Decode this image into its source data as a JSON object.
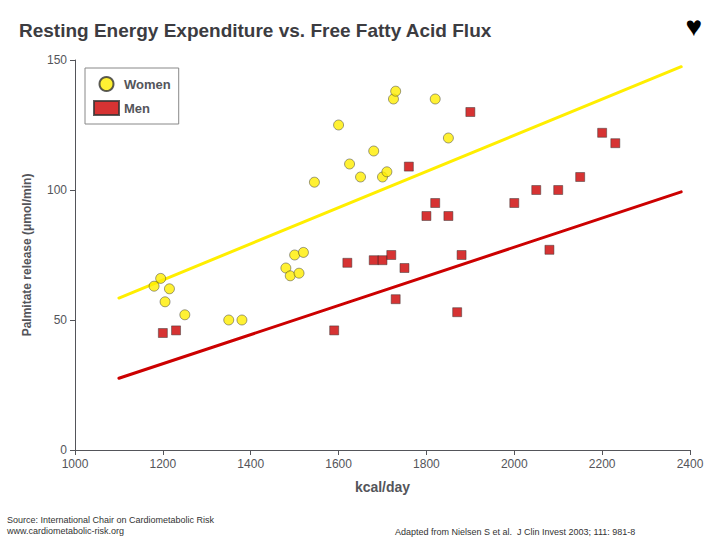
{
  "chart_data": {
    "type": "scatter",
    "title": "Resting Energy Expenditure vs. Free Fatty Acid Flux",
    "x_label": "kcal/day",
    "y_label": "Palmitate release (μmol/min)",
    "xlim": [
      1000,
      2400
    ],
    "ylim": [
      0,
      150
    ],
    "xticks": [
      1000,
      1200,
      1400,
      1600,
      1800,
      2000,
      2200,
      2400
    ],
    "yticks": [
      0,
      50,
      100,
      150
    ],
    "grid": false,
    "legend": "upper left",
    "series": [
      {
        "name": "Women",
        "type": "scatter",
        "marker": "circle",
        "color": "#ffee00",
        "x": [
          1180,
          1195,
          1205,
          1215,
          1250,
          1350,
          1380,
          1480,
          1490,
          1500,
          1510,
          1520,
          1545,
          1600,
          1625,
          1650,
          1680,
          1700,
          1710,
          1725,
          1730,
          1820,
          1850
        ],
        "values": [
          63,
          66,
          57,
          62,
          52,
          50,
          50,
          70,
          67,
          75,
          68,
          76,
          103,
          125,
          110,
          105,
          115,
          105,
          107,
          135,
          138,
          135,
          120
        ]
      },
      {
        "name": "Men",
        "type": "scatter",
        "marker": "square",
        "color": "#cc0000",
        "x": [
          1200,
          1230,
          1590,
          1620,
          1680,
          1700,
          1720,
          1730,
          1750,
          1760,
          1800,
          1820,
          1850,
          1870,
          1880,
          1900,
          2000,
          2050,
          2080,
          2100,
          2150,
          2200,
          2230
        ],
        "values": [
          45,
          46,
          46,
          72,
          73,
          73,
          75,
          58,
          70,
          109,
          90,
          95,
          90,
          53,
          75,
          130,
          95,
          100,
          77,
          100,
          105,
          122,
          118
        ]
      },
      {
        "type": "line",
        "color": "#ffee00",
        "x": [
          1100,
          2380
        ],
        "values": [
          58.45,
          147.41
        ]
      },
      {
        "type": "line",
        "color": "#cc0000",
        "x": [
          1100,
          2380
        ],
        "values": [
          27.6,
          99.28
        ]
      }
    ],
    "annotations": [
      "♥",
      "Source: International Chair on Cardiometabolic Risk\nwww.cardiometabolic-risk.org",
      "Adapted from Nielsen S et al.  J Clin Invest 2003; 111: 981-8"
    ]
  }
}
